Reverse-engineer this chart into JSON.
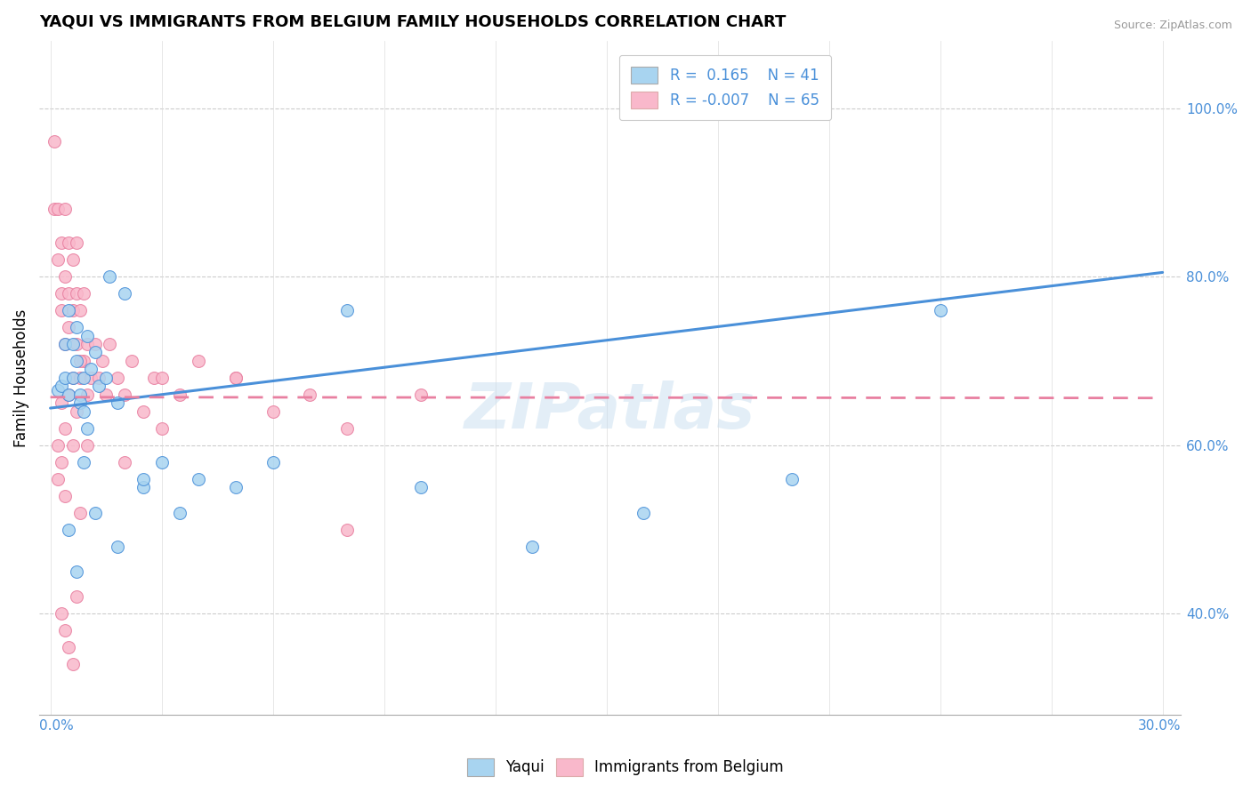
{
  "title": "YAQUI VS IMMIGRANTS FROM BELGIUM FAMILY HOUSEHOLDS CORRELATION CHART",
  "source": "Source: ZipAtlas.com",
  "ylabel": "Family Households",
  "color_blue": "#a8d4f0",
  "color_pink": "#f9b8cb",
  "line_blue": "#4a90d9",
  "line_pink": "#e87fa0",
  "watermark": "ZIPatlas",
  "y_tick_vals": [
    0.4,
    0.6,
    0.8,
    1.0
  ],
  "y_tick_labels": [
    "40.0%",
    "60.0%",
    "80.0%",
    "100.0%"
  ],
  "x_lim": [
    -0.003,
    0.305
  ],
  "y_lim": [
    0.28,
    1.08
  ],
  "blue_line": [
    0.0,
    0.644,
    0.3,
    0.805
  ],
  "pink_line": [
    0.0,
    0.657,
    0.3,
    0.656
  ],
  "yaqui_x": [
    0.002,
    0.003,
    0.004,
    0.004,
    0.005,
    0.005,
    0.006,
    0.006,
    0.007,
    0.007,
    0.008,
    0.008,
    0.009,
    0.009,
    0.01,
    0.01,
    0.011,
    0.012,
    0.013,
    0.015,
    0.016,
    0.018,
    0.02,
    0.025,
    0.03,
    0.035,
    0.04,
    0.06,
    0.08,
    0.1,
    0.13,
    0.16,
    0.2,
    0.24,
    0.005,
    0.007,
    0.009,
    0.012,
    0.018,
    0.025,
    0.05
  ],
  "yaqui_y": [
    0.665,
    0.67,
    0.68,
    0.72,
    0.76,
    0.66,
    0.68,
    0.72,
    0.74,
    0.7,
    0.66,
    0.65,
    0.64,
    0.68,
    0.62,
    0.73,
    0.69,
    0.71,
    0.67,
    0.68,
    0.8,
    0.65,
    0.78,
    0.55,
    0.58,
    0.52,
    0.56,
    0.58,
    0.76,
    0.55,
    0.48,
    0.52,
    0.56,
    0.76,
    0.5,
    0.45,
    0.58,
    0.52,
    0.48,
    0.56,
    0.55
  ],
  "belgium_x": [
    0.001,
    0.001,
    0.002,
    0.002,
    0.003,
    0.003,
    0.003,
    0.004,
    0.004,
    0.004,
    0.005,
    0.005,
    0.005,
    0.006,
    0.006,
    0.006,
    0.007,
    0.007,
    0.007,
    0.008,
    0.008,
    0.009,
    0.009,
    0.01,
    0.01,
    0.011,
    0.012,
    0.013,
    0.014,
    0.015,
    0.016,
    0.018,
    0.02,
    0.022,
    0.025,
    0.028,
    0.03,
    0.035,
    0.04,
    0.05,
    0.06,
    0.07,
    0.08,
    0.1,
    0.02,
    0.03,
    0.05,
    0.08,
    0.002,
    0.003,
    0.004,
    0.005,
    0.006,
    0.007,
    0.008,
    0.003,
    0.004,
    0.005,
    0.006,
    0.007,
    0.002,
    0.003,
    0.004,
    0.008,
    0.01
  ],
  "belgium_y": [
    0.88,
    0.96,
    0.82,
    0.88,
    0.76,
    0.84,
    0.78,
    0.72,
    0.8,
    0.88,
    0.74,
    0.78,
    0.84,
    0.68,
    0.76,
    0.82,
    0.72,
    0.78,
    0.84,
    0.68,
    0.76,
    0.7,
    0.78,
    0.66,
    0.72,
    0.68,
    0.72,
    0.68,
    0.7,
    0.66,
    0.72,
    0.68,
    0.66,
    0.7,
    0.64,
    0.68,
    0.68,
    0.66,
    0.7,
    0.68,
    0.64,
    0.66,
    0.62,
    0.66,
    0.58,
    0.62,
    0.68,
    0.5,
    0.6,
    0.65,
    0.62,
    0.66,
    0.6,
    0.64,
    0.7,
    0.4,
    0.38,
    0.36,
    0.34,
    0.42,
    0.56,
    0.58,
    0.54,
    0.52,
    0.6
  ]
}
